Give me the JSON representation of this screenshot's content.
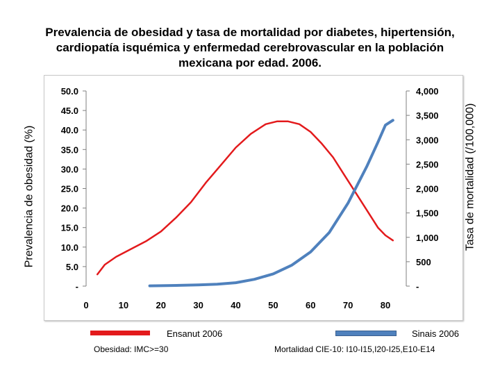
{
  "title_lines": [
    "Prevalencia de obesidad y tasa de mortalidad por diabetes, hipertensión,",
    "cardiopatía isquémica y enfermedad cerebrovascular en la población",
    "mexicana por edad.  2006."
  ],
  "chart_data": {
    "type": "line",
    "title": "Prevalencia de obesidad y tasa de mortalidad por diabetes, hipertensión, cardiopatía isquémica y enfermedad cerebrovascular en la población mexicana por edad.  2006.",
    "xlabel": "",
    "ylabel": "Prevalencia de obesidad (%)",
    "y2label": "Tasa de mortalidad (/100,000)",
    "xlim": [
      0,
      85
    ],
    "ylim": [
      0,
      50
    ],
    "y2lim": [
      0,
      4000
    ],
    "grid": false,
    "x_ticks": [
      "0",
      "10",
      "20",
      "30",
      "40",
      "50",
      "60",
      "70",
      "80"
    ],
    "y_ticks": [
      "-",
      "5.0",
      "10.0",
      "15.0",
      "20.0",
      "25.0",
      "30.0",
      "35.0",
      "40.0",
      "45.0",
      "50.0"
    ],
    "y2_ticks": [
      "-",
      "500",
      "1,000",
      "1,500",
      "2,000",
      "2,500",
      "3,000",
      "3,500",
      "4,000"
    ],
    "series": [
      {
        "name": "Ensanut 2006",
        "axis": "left",
        "color": "#e31a1c",
        "x": [
          3,
          5,
          8,
          12,
          16,
          20,
          24,
          28,
          32,
          36,
          40,
          44,
          48,
          51,
          54,
          57,
          60,
          63,
          66,
          69,
          72,
          75,
          78,
          80,
          82
        ],
        "y": [
          3.0,
          5.5,
          7.5,
          9.5,
          11.5,
          14.0,
          17.5,
          21.5,
          26.5,
          31.0,
          35.5,
          39.0,
          41.5,
          42.2,
          42.2,
          41.5,
          39.5,
          36.5,
          33.0,
          28.5,
          24.0,
          19.5,
          15.0,
          13.0,
          11.7
        ]
      },
      {
        "name": "Sinais 2006",
        "axis": "right",
        "color": "#4f81bd",
        "x": [
          17,
          20,
          25,
          30,
          35,
          40,
          45,
          50,
          55,
          60,
          65,
          70,
          75,
          78,
          80,
          82
        ],
        "y": [
          5,
          8,
          15,
          25,
          40,
          70,
          140,
          250,
          430,
          700,
          1100,
          1700,
          2450,
          2950,
          3300,
          3400
        ]
      }
    ]
  },
  "legend": {
    "series1_label": "Ensanut 2006",
    "series1_note": "Obesidad: IMC>=30",
    "series2_label": "Sinais 2006",
    "series2_note": "Mortalidad CIE-10: I10-I15,I20-I25,E10-E14"
  }
}
